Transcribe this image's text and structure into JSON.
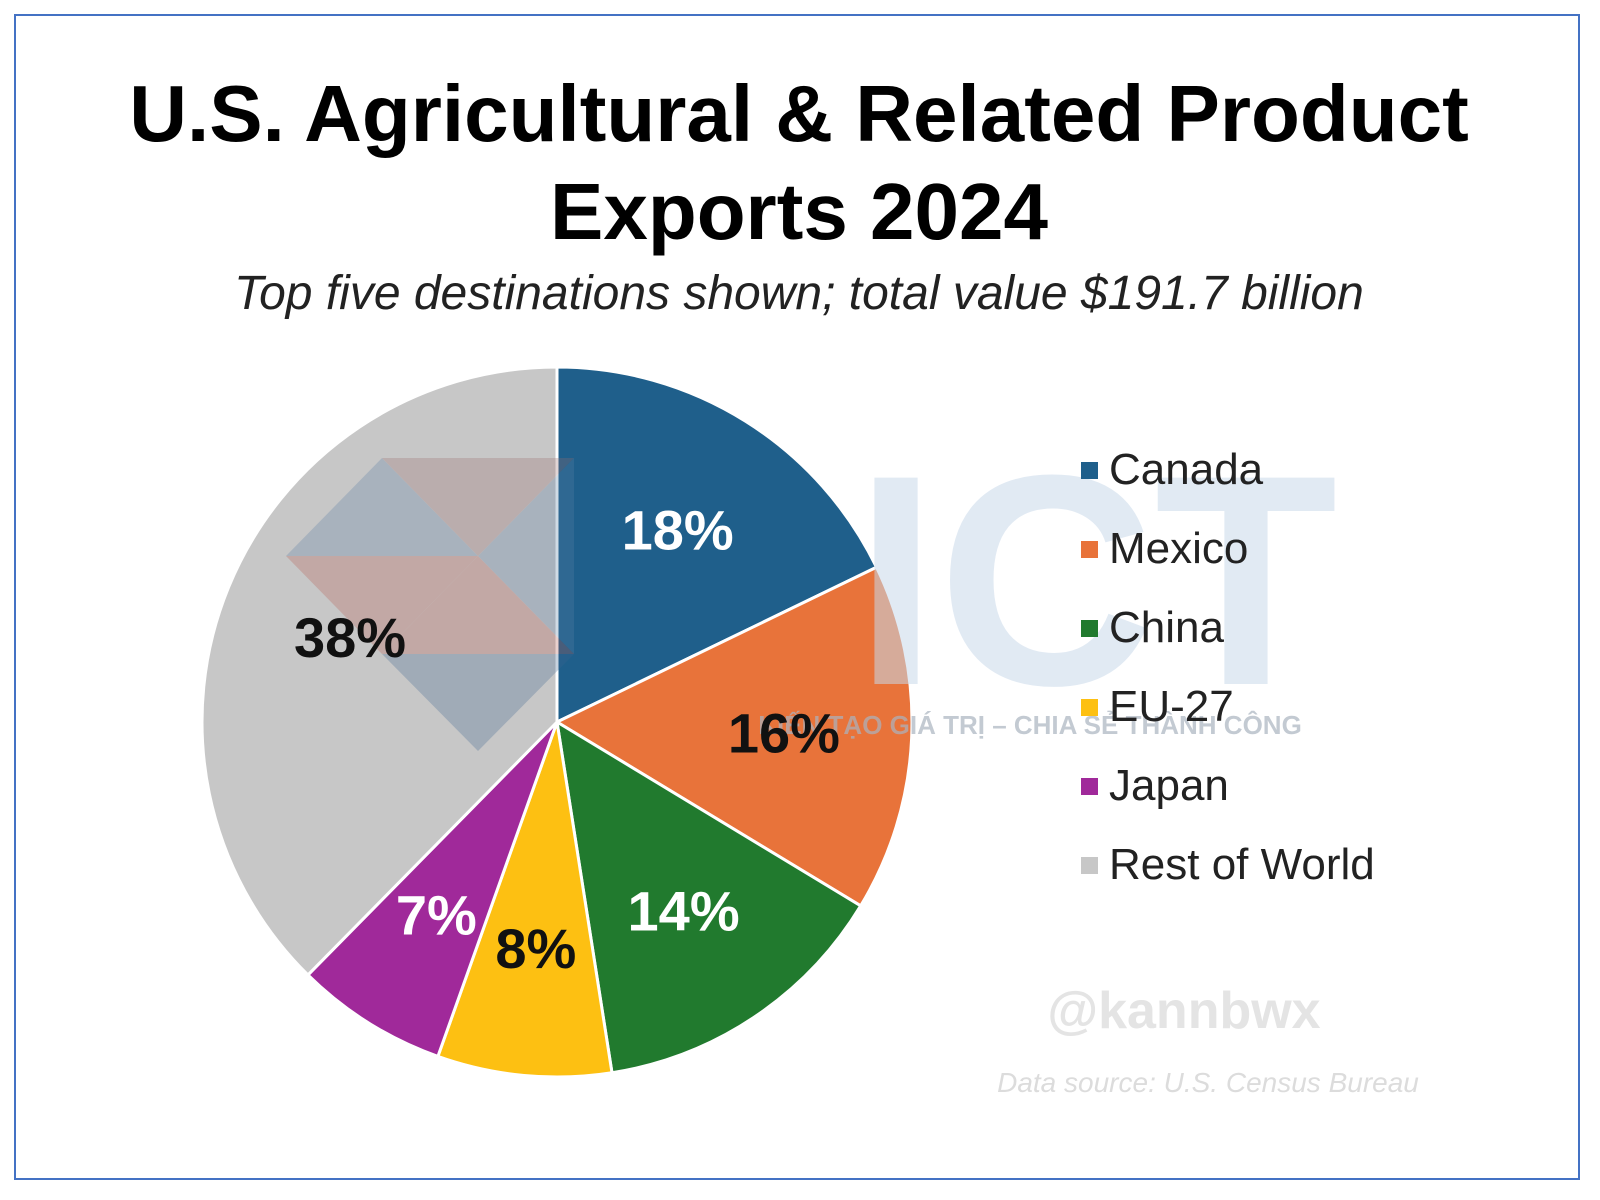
{
  "chart_data": {
    "type": "pie",
    "title_line1": "U.S. Agricultural & Related Product",
    "title_line2": "Exports 2024",
    "subtitle": "Top five destinations shown; total value $191.7 billion",
    "legend_position": "right",
    "slices": [
      {
        "name": "Canada",
        "value": 18,
        "label": "18%",
        "color": "#1f5f8b",
        "label_color": "#ffffff"
      },
      {
        "name": "Mexico",
        "value": 16,
        "label": "16%",
        "color": "#e8733a",
        "label_color": "#111111"
      },
      {
        "name": "China",
        "value": 14,
        "label": "14%",
        "color": "#217a2e",
        "label_color": "#ffffff"
      },
      {
        "name": "EU-27",
        "value": 8,
        "label": "8%",
        "color": "#fdc012",
        "label_color": "#111111"
      },
      {
        "name": "Japan",
        "value": 7,
        "label": "7%",
        "color": "#a0299a",
        "label_color": "#ffffff"
      },
      {
        "name": "Rest of World",
        "value": 38,
        "label": "38%",
        "color": "#c7c7c7",
        "label_color": "#111111"
      }
    ]
  },
  "watermark": {
    "brand": "ICT",
    "tagline": "KIẾN TẠO GIÁ TRỊ – CHIA SẺ THÀNH CÔNG",
    "handle": "@kannbwx",
    "source": "Data source: U.S. Census Bureau"
  }
}
